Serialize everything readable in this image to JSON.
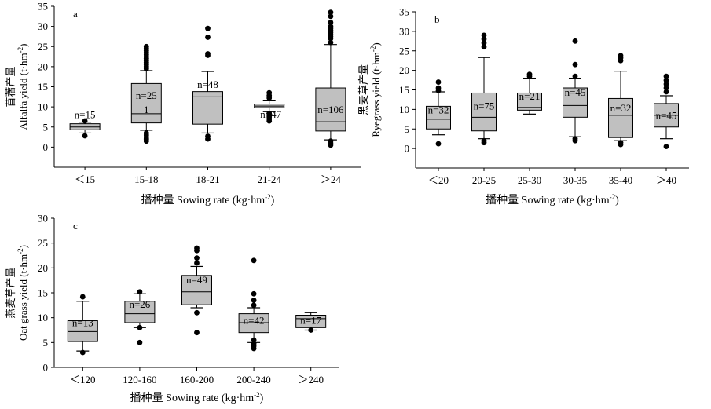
{
  "chart_data": [
    {
      "type": "box",
      "panel_label": "a",
      "ylabel_cn": "苜蓿产量",
      "ylabel_en": "Alfalfa yield (t·hm",
      "ylabel_sup": "-2",
      "ylabel_close": ")",
      "xlabel_cn": "播种量",
      "xlabel_en": "Sowing rate (kg·hm",
      "xlabel_sup": "-2",
      "xlabel_close": ")",
      "ylim": [
        -5,
        35
      ],
      "yticks": [
        0,
        5,
        10,
        15,
        20,
        25,
        30,
        35
      ],
      "categories": [
        "＜15",
        "15-18",
        "18-21",
        "21-24",
        "＞24"
      ],
      "boxes": [
        {
          "q1": 4.3,
          "median": 5.0,
          "q3": 5.8,
          "whisker_low": 3.5,
          "whisker_high": 6.2,
          "outliers": [
            2.8,
            6.5
          ],
          "n_label": "n=15",
          "n_y": 7.2
        },
        {
          "q1": 6.0,
          "median": 8.3,
          "q3": 15.8,
          "whisker_low": 4.2,
          "whisker_high": 19.0,
          "outliers": [
            1.5,
            2.0,
            2.5,
            3.0,
            3.5,
            19.5,
            20.0,
            20.5,
            21.0,
            21.5,
            22.0,
            22.5,
            23.0,
            23.5,
            24.0,
            24.5,
            25.0
          ],
          "n_label": "n=25",
          "n_y": 12.0,
          "extra_label": "1",
          "extra_y": 8.5
        },
        {
          "q1": 5.7,
          "median": 12.5,
          "q3": 13.8,
          "whisker_low": 3.5,
          "whisker_high": 18.8,
          "outliers": [
            2.0,
            2.7,
            22.8,
            23.2,
            27.3,
            29.5
          ],
          "n_label": "n=48",
          "n_y": 14.7
        },
        {
          "q1": 9.8,
          "median": 10.2,
          "q3": 10.7,
          "whisker_low": 8.8,
          "whisker_high": 11.5,
          "outliers": [
            6.5,
            7.0,
            7.5,
            8.0,
            8.4,
            12.2,
            12.8,
            13.5
          ],
          "n_label": "n=47",
          "n_y": 7.3
        },
        {
          "q1": 4.0,
          "median": 6.3,
          "q3": 14.7,
          "whisker_low": 1.8,
          "whisker_high": 25.5,
          "outliers": [
            0.5,
            1.0,
            1.5,
            26.0,
            27.0,
            27.5,
            28.0,
            28.5,
            29.0,
            29.5,
            30.0,
            31.0,
            32.5,
            33.5
          ],
          "n_label": "n=106",
          "n_y": 8.5
        }
      ]
    },
    {
      "type": "box",
      "panel_label": "b",
      "ylabel_cn": "黑麦草产量",
      "ylabel_en": "Ryegrass yield (t·hm",
      "ylabel_sup": "-2",
      "ylabel_close": ")",
      "xlabel_cn": "播种量",
      "xlabel_en": "Sowing rate (kg·hm",
      "xlabel_sup": "-2",
      "xlabel_close": ")",
      "ylim": [
        -5,
        35
      ],
      "yticks": [
        0,
        5,
        10,
        15,
        20,
        25,
        30,
        35
      ],
      "categories": [
        "＜20",
        "20-25",
        "25-30",
        "30-35",
        "35-40",
        "＞40"
      ],
      "boxes": [
        {
          "q1": 5.0,
          "median": 7.5,
          "q3": 10.8,
          "whisker_low": 3.5,
          "whisker_high": 14.5,
          "outliers": [
            1.2,
            14.8,
            15.5,
            17.0
          ],
          "n_label": "n=32",
          "n_y": 9.0
        },
        {
          "q1": 4.5,
          "median": 8.0,
          "q3": 14.2,
          "whisker_low": 2.5,
          "whisker_high": 23.3,
          "outliers": [
            1.5,
            2.0,
            26.0,
            27.0,
            28.0,
            29.0
          ],
          "n_label": "n=75",
          "n_y": 10.0
        },
        {
          "q1": 9.8,
          "median": 10.5,
          "q3": 14.2,
          "whisker_low": 8.8,
          "whisker_high": 18.0,
          "outliers": [
            18.5,
            19.0
          ],
          "n_label": "n=21",
          "n_y": 12.5
        },
        {
          "q1": 8.0,
          "median": 11.0,
          "q3": 15.5,
          "whisker_low": 3.0,
          "whisker_high": 18.0,
          "outliers": [
            2.0,
            2.5,
            18.5,
            21.5,
            27.5
          ],
          "n_label": "n=45",
          "n_y": 13.5
        },
        {
          "q1": 2.8,
          "median": 8.5,
          "q3": 12.8,
          "whisker_low": 2.0,
          "whisker_high": 19.8,
          "outliers": [
            1.0,
            1.5,
            22.5,
            23.2,
            23.8
          ],
          "n_label": "n=32",
          "n_y": 9.5
        },
        {
          "q1": 5.5,
          "median": 8.5,
          "q3": 11.5,
          "whisker_low": 2.5,
          "whisker_high": 13.5,
          "outliers": [
            0.5,
            14.5,
            15.5,
            16.5,
            17.5,
            18.5
          ],
          "n_label": "n=45",
          "n_y": 7.6
        }
      ]
    },
    {
      "type": "box",
      "panel_label": "c",
      "ylabel_cn": "燕麦草产量",
      "ylabel_en": "Oat grass yield (t·hm",
      "ylabel_sup": "-2",
      "ylabel_close": ")",
      "xlabel_cn": "播种量",
      "xlabel_en": "Sowing rate (kg·hm",
      "xlabel_sup": "-2",
      "xlabel_close": ")",
      "ylim": [
        0,
        30
      ],
      "yticks": [
        0,
        5,
        10,
        15,
        20,
        25,
        30
      ],
      "categories": [
        "＜120",
        "120-160",
        "160-200",
        "200-240",
        "＞240"
      ],
      "boxes": [
        {
          "q1": 5.2,
          "median": 7.2,
          "q3": 9.4,
          "whisker_low": 3.3,
          "whisker_high": 13.3,
          "outliers": [
            3.0,
            14.2
          ],
          "n_label": "n=13",
          "n_y": 8.3
        },
        {
          "q1": 9.0,
          "median": 10.8,
          "q3": 13.3,
          "whisker_low": 8.0,
          "whisker_high": 14.8,
          "outliers": [
            5.0,
            8.0,
            15.2
          ],
          "n_label": "n=26",
          "n_y": 12.0
        },
        {
          "q1": 12.6,
          "median": 15.2,
          "q3": 18.5,
          "whisker_low": 12.0,
          "whisker_high": 20.3,
          "outliers": [
            7.0,
            11.0,
            21.0,
            22.0,
            23.5,
            24.0
          ],
          "n_label": "n=49",
          "n_y": 16.9
        },
        {
          "q1": 7.0,
          "median": 9.0,
          "q3": 10.8,
          "whisker_low": 5.0,
          "whisker_high": 12.0,
          "outliers": [
            3.8,
            4.3,
            4.8,
            5.5,
            12.5,
            13.5,
            14.8,
            21.5
          ],
          "n_label": "n=42",
          "n_y": 8.8
        },
        {
          "q1": 8.0,
          "median": 9.8,
          "q3": 10.5,
          "whisker_low": 7.5,
          "whisker_high": 11.0,
          "outliers": [
            7.5
          ],
          "n_label": "n=17",
          "n_y": 8.8
        }
      ]
    }
  ]
}
